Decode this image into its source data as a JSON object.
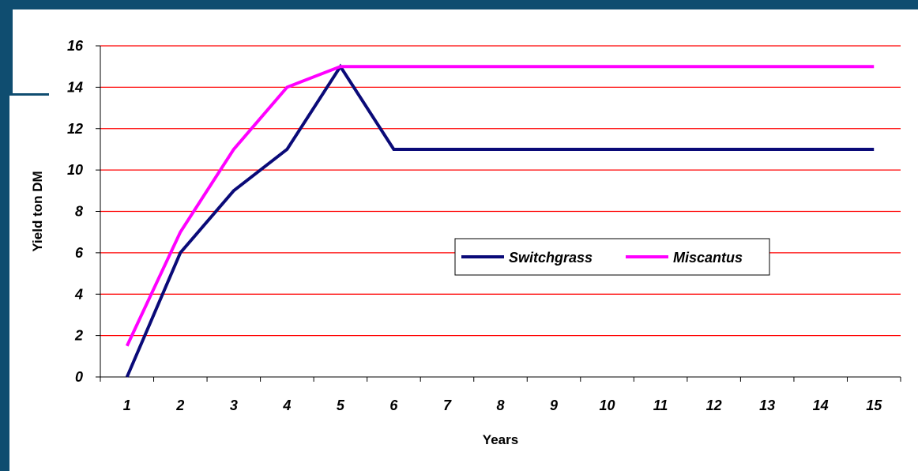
{
  "chart_data": {
    "type": "line",
    "x": [
      1,
      2,
      3,
      4,
      5,
      6,
      7,
      8,
      9,
      10,
      11,
      12,
      13,
      14,
      15
    ],
    "series": [
      {
        "name": "Switchgrass",
        "color": "#0a0a78",
        "values": [
          0,
          6,
          9,
          11,
          15,
          11,
          11,
          11,
          11,
          11,
          11,
          11,
          11,
          11,
          11
        ]
      },
      {
        "name": "Miscantus",
        "color": "#ff00ff",
        "values": [
          1.5,
          7,
          11,
          14,
          15,
          15,
          15,
          15,
          15,
          15,
          15,
          15,
          15,
          15,
          15
        ]
      }
    ],
    "xlabel": "Years",
    "ylabel": "Yield ton DM",
    "ylim": [
      0,
      16
    ],
    "yticks": [
      0,
      2,
      4,
      6,
      8,
      10,
      12,
      14,
      16
    ],
    "xtick_labels": [
      "1",
      "2",
      "3",
      "4",
      "5",
      "6",
      "7",
      "8",
      "9",
      "10",
      "11",
      "12",
      "13",
      "14",
      "15"
    ],
    "gridlines": "horizontal",
    "gridline_color": "#ff0000",
    "legend_placement": "center-right"
  },
  "colors": {
    "frame": "#0f4d70"
  }
}
